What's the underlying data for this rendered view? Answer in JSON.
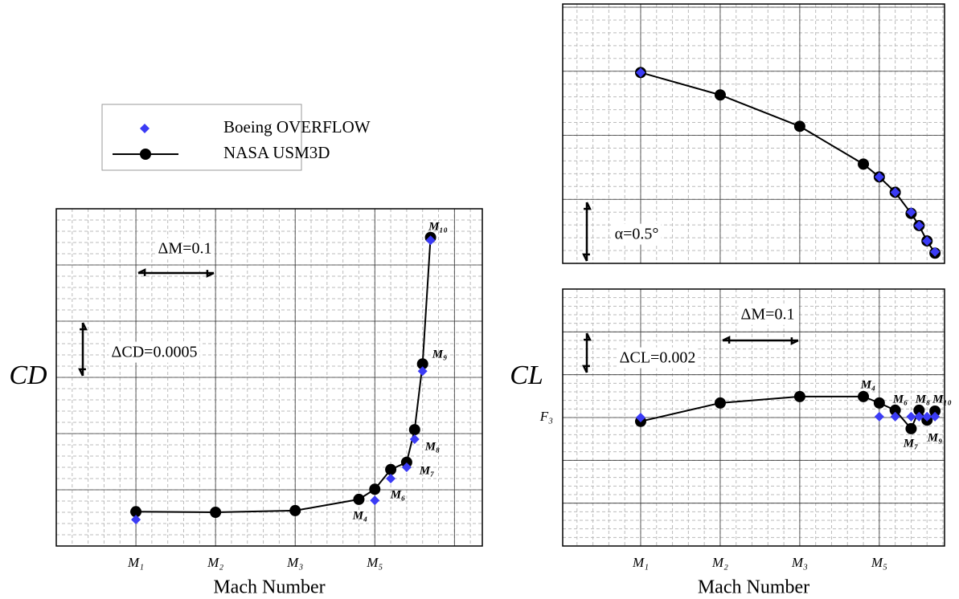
{
  "chart_data": [
    {
      "type": "line",
      "xlabel": "Mach Number",
      "ylabel": "CD",
      "xlim": [
        0,
        5.35
      ],
      "ylim": [
        0,
        6
      ],
      "xticks": [
        {
          "value": 1,
          "label": "M₁"
        },
        {
          "value": 2,
          "label": "M₂"
        },
        {
          "value": 3,
          "label": "M₃"
        },
        {
          "value": 4,
          "label": "M₅"
        },
        5
      ],
      "yticks": [
        1,
        2,
        3,
        4,
        5
      ],
      "grid": true,
      "annotations": [
        "ΔM=0.1",
        "ΔCD=0.0005"
      ],
      "point_labels": [
        "M₄",
        "M₆",
        "M₇",
        "M₈",
        "M₉",
        "M₁₀"
      ],
      "series": [
        {
          "name": "Boeing OVERFLOW",
          "color": "#3b3bf5",
          "marker": "diamond",
          "x": [
            1,
            4,
            4.2,
            4.4,
            4.5,
            4.6,
            4.7
          ],
          "values": [
            0.47,
            0.81,
            1.2,
            1.4,
            1.9,
            3.11,
            5.44
          ]
        },
        {
          "name": "NASA USM3D",
          "color": "#000000",
          "marker": "circle",
          "x": [
            1,
            2,
            3,
            3.8,
            4,
            4.2,
            4.4,
            4.5,
            4.6,
            4.7
          ],
          "values": [
            0.61,
            0.6,
            0.63,
            0.83,
            1.01,
            1.36,
            1.49,
            2.07,
            3.24,
            5.49
          ]
        }
      ]
    },
    {
      "type": "line",
      "xlim": [
        0.02,
        4.82
      ],
      "ylim": [
        0,
        4.05
      ],
      "xticks": [
        1,
        2,
        3,
        4
      ],
      "yticks": [
        1,
        2,
        3,
        4
      ],
      "grid": true,
      "annotations": [
        "α=0.5°"
      ],
      "series": [
        {
          "name": "Boeing OVERFLOW",
          "color": "#3b3bf5",
          "marker": "diamond",
          "x": [
            1,
            4,
            4.2,
            4.4,
            4.5,
            4.6,
            4.7
          ],
          "values": [
            2.98,
            1.35,
            1.11,
            0.8,
            0.59,
            0.35,
            0.18
          ]
        },
        {
          "name": "NASA USM3D",
          "color": "#000000",
          "marker": "circle",
          "x": [
            1,
            2,
            3,
            3.8,
            4,
            4.2,
            4.4,
            4.5,
            4.6,
            4.7
          ],
          "values": [
            2.98,
            2.63,
            2.14,
            1.55,
            1.35,
            1.11,
            0.78,
            0.59,
            0.35,
            0.16
          ]
        }
      ]
    },
    {
      "type": "line",
      "xlabel": "Mach Number",
      "ylabel": "CL",
      "xlim": [
        0.02,
        4.82
      ],
      "ylim": [
        0,
        6
      ],
      "xticks": [
        {
          "value": 1,
          "label": "M₁"
        },
        {
          "value": 2,
          "label": "M₂"
        },
        {
          "value": 3,
          "label": "M₃"
        },
        {
          "value": 4,
          "label": "M₅"
        }
      ],
      "yticks": [
        1,
        2,
        {
          "value": 3,
          "label": "F₃"
        },
        4,
        5
      ],
      "grid": true,
      "annotations": [
        "ΔM=0.1",
        "ΔCL=0.002"
      ],
      "point_labels": [
        "M₄",
        "M₆",
        "M₇",
        "M₈",
        "M₉",
        "M₁₀"
      ],
      "series": [
        {
          "name": "Boeing OVERFLOW",
          "color": "#3b3bf5",
          "marker": "diamond",
          "x": [
            1,
            4,
            4.2,
            4.4,
            4.5,
            4.6,
            4.7
          ],
          "values": [
            3.0,
            3.02,
            3.02,
            3.02,
            3.02,
            3.02,
            3.02
          ]
        },
        {
          "name": "NASA USM3D",
          "color": "#000000",
          "marker": "circle",
          "x": [
            1,
            2,
            3,
            3.8,
            4,
            4.2,
            4.4,
            4.5,
            4.6,
            4.7
          ],
          "values": [
            2.91,
            3.34,
            3.49,
            3.49,
            3.34,
            3.17,
            2.74,
            3.17,
            2.94,
            3.15
          ]
        }
      ]
    }
  ]
}
